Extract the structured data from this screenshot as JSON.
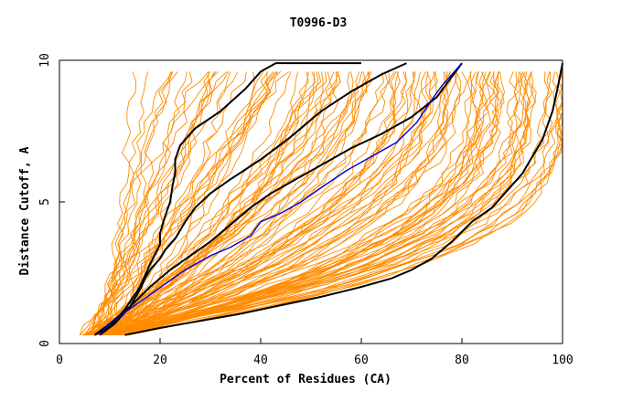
{
  "chart_data": {
    "type": "line",
    "title": "T0996-D3",
    "xlabel": "Percent of Residues (CA)",
    "ylabel": "Distance Cutoff, A",
    "xlim": [
      0,
      100
    ],
    "ylim": [
      0,
      10
    ],
    "x_ticks": [
      "0",
      "20",
      "40",
      "60",
      "80",
      "100"
    ],
    "y_ticks": [
      "0",
      "5",
      "10"
    ],
    "grid": false,
    "colors": {
      "background_series": "#ff8c00",
      "highlight_black": "#000000",
      "highlight_blue": "#0000cc"
    },
    "background_series_count": 120,
    "highlighted_series": [
      {
        "color": "#000000",
        "x": [
          7,
          10,
          13,
          16,
          18,
          20,
          20,
          21,
          22,
          22.5,
          23,
          23,
          24,
          27,
          32,
          37,
          40,
          43,
          46,
          51,
          56,
          60
        ],
        "y": [
          0.3,
          0.6,
          1.2,
          2.0,
          2.8,
          3.5,
          3.9,
          4.5,
          5.0,
          5.6,
          6.0,
          6.5,
          7.0,
          7.6,
          8.2,
          9.0,
          9.6,
          9.9,
          9.9,
          9.9,
          9.9,
          9.9
        ]
      },
      {
        "color": "#000000",
        "x": [
          8,
          11,
          14,
          16,
          17,
          18,
          20,
          21,
          23,
          25,
          27,
          30,
          34,
          40,
          46,
          52,
          58,
          64,
          69
        ],
        "y": [
          0.3,
          0.7,
          1.3,
          1.9,
          2.3,
          2.6,
          3.0,
          3.3,
          3.7,
          4.3,
          4.8,
          5.3,
          5.8,
          6.5,
          7.3,
          8.2,
          8.9,
          9.5,
          9.9
        ]
      },
      {
        "color": "#000000",
        "x": [
          7,
          10,
          14,
          18,
          22,
          26,
          30,
          34,
          38,
          42,
          46,
          52,
          58,
          64,
          70,
          75,
          80
        ],
        "y": [
          0.3,
          0.7,
          1.3,
          2.0,
          2.6,
          3.1,
          3.6,
          4.2,
          4.8,
          5.3,
          5.7,
          6.3,
          6.9,
          7.4,
          8.0,
          8.7,
          9.9
        ]
      },
      {
        "color": "#0000cc",
        "x": [
          8,
          10,
          13,
          17,
          21,
          25,
          30,
          34,
          38,
          40,
          44,
          48,
          52,
          57,
          62,
          67,
          71,
          74,
          76,
          80
        ],
        "y": [
          0.3,
          0.7,
          1.1,
          1.6,
          2.1,
          2.6,
          3.1,
          3.4,
          3.8,
          4.3,
          4.6,
          5.0,
          5.5,
          6.1,
          6.6,
          7.1,
          7.8,
          8.6,
          9.1,
          9.9
        ]
      },
      {
        "color": "#000000",
        "x": [
          13,
          20,
          28,
          36,
          44,
          52,
          60,
          66,
          70,
          74,
          78,
          82,
          86,
          88,
          90,
          92,
          94,
          96,
          98,
          99,
          100
        ],
        "y": [
          0.3,
          0.55,
          0.8,
          1.05,
          1.35,
          1.65,
          2.0,
          2.3,
          2.6,
          3.0,
          3.6,
          4.3,
          4.8,
          5.2,
          5.6,
          6.0,
          6.6,
          7.2,
          8.2,
          9.0,
          9.9
        ]
      }
    ]
  }
}
